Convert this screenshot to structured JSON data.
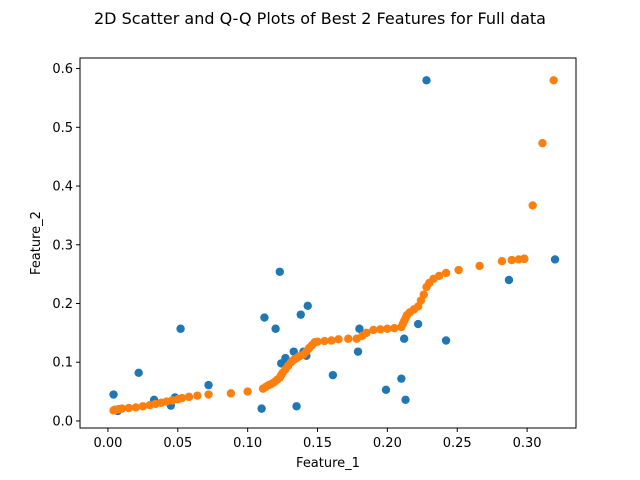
{
  "chart_data": {
    "type": "scatter",
    "title": "2D Scatter and Q-Q Plots of Best 2 Features for Full data",
    "xlabel": "Feature_1",
    "ylabel": "Feature_2",
    "xlim": [
      -0.02,
      0.335
    ],
    "ylim": [
      -0.012,
      0.618
    ],
    "xticks": [
      0.0,
      0.05,
      0.1,
      0.15,
      0.2,
      0.25,
      0.3
    ],
    "xtick_labels": [
      "0.00",
      "0.05",
      "0.10",
      "0.15",
      "0.20",
      "0.25",
      "0.30"
    ],
    "yticks": [
      0.0,
      0.1,
      0.2,
      0.3,
      0.4,
      0.5,
      0.6
    ],
    "ytick_labels": [
      "0.0",
      "0.1",
      "0.2",
      "0.3",
      "0.4",
      "0.5",
      "0.6"
    ],
    "grid": false,
    "series": [
      {
        "color": "#1f77b4",
        "points": [
          [
            0.004,
            0.045
          ],
          [
            0.005,
            0.019
          ],
          [
            0.007,
            0.017
          ],
          [
            0.008,
            0.02
          ],
          [
            0.022,
            0.082
          ],
          [
            0.033,
            0.036
          ],
          [
            0.045,
            0.026
          ],
          [
            0.048,
            0.04
          ],
          [
            0.052,
            0.157
          ],
          [
            0.072,
            0.061
          ],
          [
            0.11,
            0.021
          ],
          [
            0.112,
            0.176
          ],
          [
            0.12,
            0.157
          ],
          [
            0.123,
            0.254
          ],
          [
            0.124,
            0.098
          ],
          [
            0.127,
            0.107
          ],
          [
            0.129,
            0.1
          ],
          [
            0.133,
            0.118
          ],
          [
            0.135,
            0.025
          ],
          [
            0.138,
            0.181
          ],
          [
            0.14,
            0.118
          ],
          [
            0.142,
            0.111
          ],
          [
            0.143,
            0.196
          ],
          [
            0.161,
            0.078
          ],
          [
            0.179,
            0.118
          ],
          [
            0.18,
            0.157
          ],
          [
            0.199,
            0.053
          ],
          [
            0.21,
            0.072
          ],
          [
            0.212,
            0.14
          ],
          [
            0.213,
            0.036
          ],
          [
            0.222,
            0.165
          ],
          [
            0.228,
            0.58
          ],
          [
            0.242,
            0.137
          ],
          [
            0.287,
            0.24
          ],
          [
            0.298,
            0.276
          ],
          [
            0.32,
            0.275
          ]
        ]
      },
      {
        "color": "#ff7f0e",
        "points": [
          [
            0.004,
            0.018
          ],
          [
            0.006,
            0.019
          ],
          [
            0.008,
            0.02
          ],
          [
            0.01,
            0.021
          ],
          [
            0.015,
            0.022
          ],
          [
            0.02,
            0.023
          ],
          [
            0.025,
            0.025
          ],
          [
            0.03,
            0.027
          ],
          [
            0.034,
            0.029
          ],
          [
            0.038,
            0.031
          ],
          [
            0.042,
            0.033
          ],
          [
            0.046,
            0.035
          ],
          [
            0.05,
            0.037
          ],
          [
            0.053,
            0.039
          ],
          [
            0.058,
            0.041
          ],
          [
            0.064,
            0.043
          ],
          [
            0.072,
            0.045
          ],
          [
            0.088,
            0.047
          ],
          [
            0.1,
            0.05
          ],
          [
            0.111,
            0.055
          ],
          [
            0.113,
            0.058
          ],
          [
            0.115,
            0.061
          ],
          [
            0.117,
            0.063
          ],
          [
            0.119,
            0.066
          ],
          [
            0.121,
            0.07
          ],
          [
            0.123,
            0.074
          ],
          [
            0.124,
            0.078
          ],
          [
            0.125,
            0.082
          ],
          [
            0.127,
            0.088
          ],
          [
            0.129,
            0.094
          ],
          [
            0.131,
            0.1
          ],
          [
            0.133,
            0.104
          ],
          [
            0.135,
            0.107
          ],
          [
            0.137,
            0.11
          ],
          [
            0.14,
            0.113
          ],
          [
            0.142,
            0.118
          ],
          [
            0.144,
            0.124
          ],
          [
            0.146,
            0.129
          ],
          [
            0.148,
            0.134
          ],
          [
            0.15,
            0.135
          ],
          [
            0.155,
            0.136
          ],
          [
            0.16,
            0.137
          ],
          [
            0.165,
            0.139
          ],
          [
            0.172,
            0.14
          ],
          [
            0.178,
            0.14
          ],
          [
            0.182,
            0.145
          ],
          [
            0.185,
            0.15
          ],
          [
            0.19,
            0.155
          ],
          [
            0.195,
            0.156
          ],
          [
            0.2,
            0.157
          ],
          [
            0.205,
            0.158
          ],
          [
            0.21,
            0.16
          ],
          [
            0.211,
            0.165
          ],
          [
            0.212,
            0.17
          ],
          [
            0.213,
            0.175
          ],
          [
            0.214,
            0.18
          ],
          [
            0.216,
            0.185
          ],
          [
            0.219,
            0.19
          ],
          [
            0.222,
            0.195
          ],
          [
            0.224,
            0.205
          ],
          [
            0.226,
            0.215
          ],
          [
            0.228,
            0.228
          ],
          [
            0.23,
            0.235
          ],
          [
            0.233,
            0.242
          ],
          [
            0.237,
            0.247
          ],
          [
            0.242,
            0.252
          ],
          [
            0.251,
            0.257
          ],
          [
            0.266,
            0.264
          ],
          [
            0.282,
            0.272
          ],
          [
            0.289,
            0.274
          ],
          [
            0.294,
            0.275
          ],
          [
            0.298,
            0.276
          ],
          [
            0.304,
            0.367
          ],
          [
            0.311,
            0.473
          ],
          [
            0.319,
            0.58
          ]
        ]
      }
    ]
  }
}
